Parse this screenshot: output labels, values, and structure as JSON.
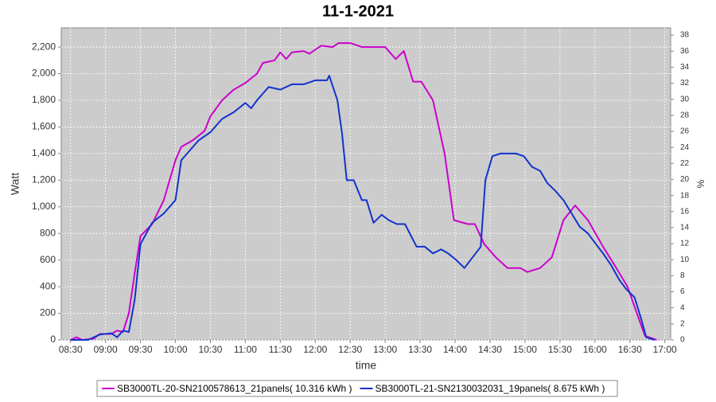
{
  "chart_data": {
    "type": "line",
    "title": "11-1-2021",
    "x_label": "time",
    "y_label": "Watt",
    "y2_label": "%",
    "xlim": [
      502,
      1025
    ],
    "xticks": [
      {
        "value": 510,
        "label": "08:30"
      },
      {
        "value": 540,
        "label": "09:00"
      },
      {
        "value": 570,
        "label": "09:30"
      },
      {
        "value": 600,
        "label": "10:00"
      },
      {
        "value": 630,
        "label": "10:30"
      },
      {
        "value": 660,
        "label": "11:00"
      },
      {
        "value": 690,
        "label": "11:30"
      },
      {
        "value": 720,
        "label": "12:00"
      },
      {
        "value": 750,
        "label": "12:30"
      },
      {
        "value": 780,
        "label": "13:00"
      },
      {
        "value": 810,
        "label": "13:30"
      },
      {
        "value": 840,
        "label": "14:00"
      },
      {
        "value": 870,
        "label": "14:30"
      },
      {
        "value": 900,
        "label": "15:00"
      },
      {
        "value": 930,
        "label": "15:30"
      },
      {
        "value": 960,
        "label": "16:00"
      },
      {
        "value": 990,
        "label": "16:30"
      },
      {
        "value": 1020,
        "label": "17:00"
      }
    ],
    "ylim": [
      0,
      2344
    ],
    "yticks": [
      0,
      200,
      400,
      600,
      800,
      {
        "value": 1000,
        "label": "1,000"
      },
      {
        "value": 1200,
        "label": "1,200"
      },
      {
        "value": 1400,
        "label": "1,400"
      },
      {
        "value": 1600,
        "label": "1,600"
      },
      {
        "value": 1800,
        "label": "1,800"
      },
      {
        "value": 2000,
        "label": "2,000"
      },
      {
        "value": 2200,
        "label": "2,200"
      }
    ],
    "y2lim": [
      0,
      38.9
    ],
    "y2ticks": [
      0,
      2,
      4,
      6,
      8,
      10,
      12,
      14,
      16,
      18,
      20,
      22,
      24,
      26,
      28,
      30,
      32,
      34,
      36,
      38
    ],
    "grid": true,
    "series": [
      {
        "name": "SB3000TL-20-SN2100578613_21panels( 10.316 kWh )",
        "color": "#cc00cc",
        "x": [
          510,
          515,
          520,
          530,
          535,
          545,
          550,
          555,
          560,
          565,
          570,
          580,
          590,
          600,
          605,
          615,
          625,
          630,
          640,
          650,
          660,
          670,
          675,
          685,
          690,
          695,
          700,
          710,
          715,
          720,
          725,
          735,
          740,
          750,
          760,
          780,
          789,
          796,
          804,
          811,
          821,
          831,
          839,
          851,
          857,
          865,
          875,
          885,
          896,
          902,
          913,
          923,
          933,
          943,
          954,
          967,
          977,
          988,
          994,
          1003,
          1013
        ],
        "values": [
          0,
          20,
          0,
          10,
          45,
          45,
          70,
          60,
          200,
          500,
          780,
          870,
          1050,
          1350,
          1450,
          1500,
          1570,
          1680,
          1800,
          1880,
          1930,
          2000,
          2080,
          2100,
          2160,
          2110,
          2160,
          2170,
          2150,
          2180,
          2210,
          2200,
          2230,
          2230,
          2200,
          2200,
          2110,
          2170,
          1940,
          1940,
          1800,
          1400,
          900,
          870,
          870,
          720,
          620,
          540,
          540,
          510,
          540,
          620,
          900,
          1010,
          900,
          700,
          560,
          400,
          250,
          30,
          0
        ]
      },
      {
        "name": "SB3000TL-21-SN2130032031_19panels( 8.675 kWh )",
        "color": "#1133cc",
        "x": [
          510,
          525,
          535,
          545,
          550,
          555,
          560,
          565,
          570,
          580,
          590,
          600,
          605,
          610,
          620,
          630,
          640,
          650,
          660,
          665,
          670,
          680,
          690,
          700,
          710,
          720,
          730,
          732,
          739,
          743,
          747,
          753,
          760,
          764,
          770,
          777,
          783,
          790,
          797,
          807,
          814,
          821,
          828,
          834,
          841,
          848,
          855,
          862,
          866,
          872,
          879,
          892,
          899,
          906,
          913,
          919,
          926,
          933,
          940,
          947,
          954,
          960,
          967,
          974,
          981,
          987,
          994,
          1000,
          1004,
          1011
        ],
        "values": [
          0,
          0,
          40,
          50,
          20,
          70,
          60,
          300,
          720,
          880,
          950,
          1050,
          1350,
          1400,
          1500,
          1560,
          1660,
          1710,
          1780,
          1740,
          1800,
          1900,
          1880,
          1920,
          1920,
          1950,
          1950,
          1985,
          1800,
          1550,
          1200,
          1200,
          1050,
          1050,
          880,
          940,
          900,
          870,
          870,
          700,
          700,
          650,
          680,
          650,
          600,
          540,
          620,
          700,
          1200,
          1380,
          1400,
          1400,
          1380,
          1300,
          1270,
          1180,
          1120,
          1050,
          950,
          850,
          800,
          730,
          650,
          560,
          450,
          380,
          320,
          150,
          20,
          0
        ]
      }
    ]
  }
}
